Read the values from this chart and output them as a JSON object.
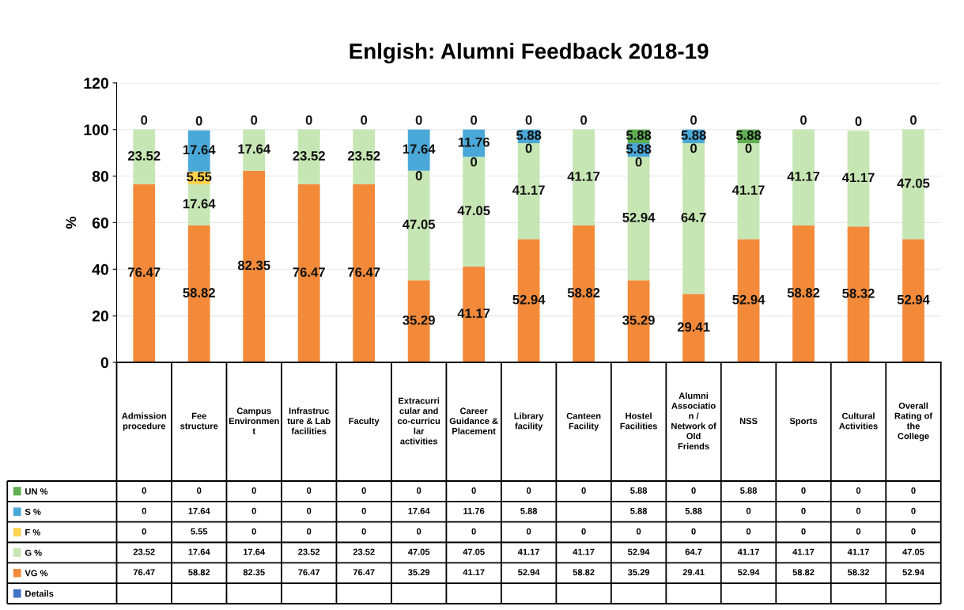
{
  "chart_data": [
    {
      "type": "bar",
      "title": "Enlgish: Alumni Feedback 2018-19",
      "ylabel": "%",
      "categories": [
        null,
        null,
        null,
        null,
        null,
        null,
        null,
        null,
        null,
        null,
        null,
        null,
        null,
        null,
        null
      ],
      "stacked": true,
      "grid": "y",
      "ylim": [
        0,
        120
      ],
      "yticks": [
        0,
        20,
        40,
        60,
        80,
        100,
        120
      ],
      "series": [
        {
          "color": "#f28a3a",
          "values": [
            76.47,
            58.82,
            82.35,
            76.47,
            76.47,
            35.29,
            41.17,
            52.94,
            58.82,
            35.29,
            29.41,
            52.94,
            58.82,
            58.32,
            52.94
          ],
          "value_labels": [
            "76.47",
            "58.82",
            "82.35",
            "76.47",
            "76.47",
            "35.29",
            "41.17",
            "52.94",
            "58.82",
            "35.29",
            "29.41",
            "52.94",
            "58.82",
            "58.32",
            "52.94"
          ]
        },
        {
          "color": "#c6e6b3",
          "values": [
            23.52,
            17.64,
            17.64,
            23.52,
            23.52,
            47.05,
            47.05,
            41.17,
            41.17,
            52.94,
            64.7,
            41.17,
            41.17,
            41.17,
            47.05
          ],
          "value_labels": [
            "23.52",
            "17.64",
            "17.64",
            "23.52",
            "23.52",
            "47.05",
            "47.05",
            "41.17",
            "41.17",
            "52.94",
            "64.7",
            "41.17",
            "41.17",
            "41.17",
            "47.05"
          ]
        },
        {
          "color": "#ffd34d",
          "values": [
            0,
            5.55,
            0,
            0,
            0,
            0,
            0,
            0,
            0,
            0,
            0,
            0,
            0,
            0,
            0
          ],
          "value_labels": [
            null,
            "5.55",
            null,
            null,
            null,
            "0",
            "0",
            "0",
            null,
            "0",
            "0",
            "0",
            null,
            null,
            null
          ]
        },
        {
          "color": "#4aa8d8",
          "values": [
            0,
            17.64,
            0,
            0,
            0,
            17.64,
            11.76,
            5.88,
            null,
            5.88,
            5.88,
            0,
            0,
            0,
            0
          ],
          "value_labels": [
            null,
            "17.64",
            null,
            null,
            null,
            "17.64",
            "11.76",
            "5.88",
            null,
            "5.88",
            "5.88",
            null,
            null,
            null,
            null
          ]
        },
        {
          "color": "#5fae52",
          "values": [
            0,
            0,
            0,
            0,
            0,
            0,
            0,
            0,
            0,
            5.88,
            0,
            5.88,
            0,
            0,
            0
          ],
          "value_labels": [
            "0",
            "0",
            "0",
            "0",
            "0",
            "0",
            "0",
            "0",
            "0",
            "5.88",
            "0",
            "5.88",
            "0",
            "0",
            "0"
          ]
        },
        {
          "color": "#4472c4",
          "values": [
            null,
            null,
            null,
            null,
            null,
            null,
            null,
            null,
            null,
            null,
            null,
            null,
            null,
            null,
            null
          ]
        }
      ]
    },
    {
      "type": "heatmap",
      "categories": [
        "Admission procedure",
        "Fee structure",
        "Campus Environment",
        "Infrastructure & Lab facilities",
        "Faculty",
        "Extracurricular and co-curricular activities",
        "Career Guidance & Placement",
        "Library facility",
        "Canteen Facility",
        "Hostel Facilities",
        "Alumni Association / Network of Old Friends",
        "NSS",
        "Sports",
        "Cultural Activities",
        "Overall Rating of the College"
      ],
      "y_categories": [
        "UN %",
        "S %",
        "F %",
        "G %",
        "VG %",
        "Details"
      ],
      "data_labels": true,
      "cells": [
        [
          0,
          0,
          0,
          0,
          0,
          0,
          0,
          0,
          0,
          5.88,
          0,
          5.88,
          0,
          0,
          0
        ],
        [
          0,
          17.64,
          0,
          0,
          0,
          17.64,
          11.76,
          5.88,
          null,
          5.88,
          5.88,
          0,
          0,
          0,
          0
        ],
        [
          0,
          5.55,
          0,
          0,
          0,
          0,
          0,
          0,
          0,
          0,
          0,
          0,
          0,
          0,
          0
        ],
        [
          23.52,
          17.64,
          17.64,
          23.52,
          23.52,
          47.05,
          47.05,
          41.17,
          41.17,
          52.94,
          64.7,
          41.17,
          41.17,
          41.17,
          47.05
        ],
        [
          76.47,
          58.82,
          82.35,
          76.47,
          76.47,
          35.29,
          41.17,
          52.94,
          58.82,
          35.29,
          29.41,
          52.94,
          58.82,
          58.32,
          52.94
        ],
        [
          null,
          null,
          null,
          null,
          null,
          null,
          null,
          null,
          null,
          null,
          null,
          null,
          null,
          null,
          null
        ]
      ]
    }
  ]
}
